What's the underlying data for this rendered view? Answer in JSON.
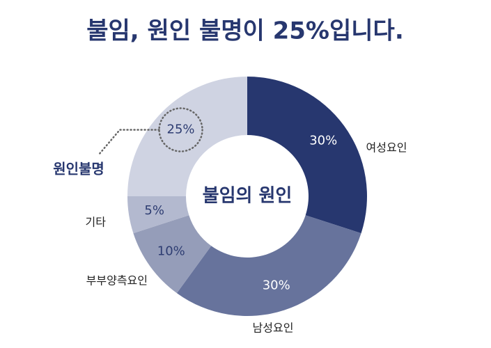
{
  "chart_data": {
    "type": "donut",
    "title": "불임, 원인 불명이 25%입니다.",
    "center_label": "불임의 원인",
    "categories": [
      "여성요인",
      "남성요인",
      "부부양측요인",
      "기타",
      "원인불명"
    ],
    "values": [
      30,
      30,
      10,
      5,
      25
    ],
    "value_labels": [
      "30%",
      "30%",
      "10%",
      "5%",
      "25%"
    ],
    "colors": [
      "#27376f",
      "#67739c",
      "#959db9",
      "#b3b9cf",
      "#cfd3e2"
    ]
  }
}
